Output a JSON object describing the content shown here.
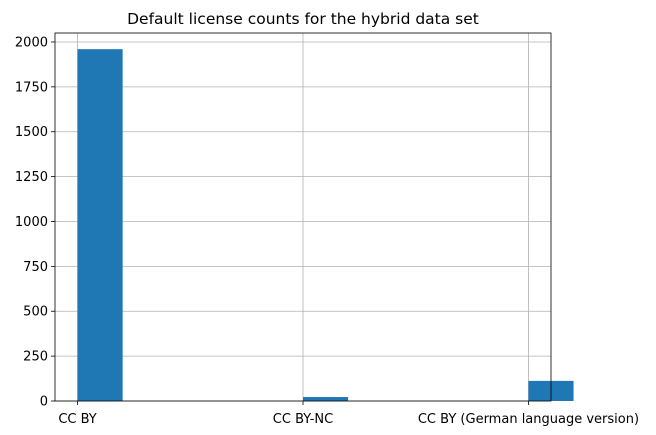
{
  "chart_data": {
    "type": "bar",
    "title": "Default license counts for the hybrid data set",
    "xlabel": "",
    "ylabel": "",
    "categories": [
      "CC BY",
      "CC BY-NC",
      "CC BY (German language version)"
    ],
    "x_axis": {
      "range": [
        -0.1,
        2.1
      ],
      "bar_width": 0.2,
      "tick_positions": [
        0,
        1,
        2
      ]
    },
    "series": [
      {
        "bars": [
          {
            "x": 0,
            "value": 1960
          },
          {
            "x": 1,
            "value": 22
          },
          {
            "x": 2,
            "value": 112
          }
        ]
      }
    ],
    "ylim": [
      0,
      2050
    ],
    "yticks": [
      0,
      250,
      500,
      750,
      1000,
      1250,
      1500,
      1750,
      2000
    ],
    "grid": true,
    "legend": "none",
    "colors": {
      "bar": "#1f77b4",
      "grid": "#b0b0b0",
      "axis": "#000000"
    }
  }
}
